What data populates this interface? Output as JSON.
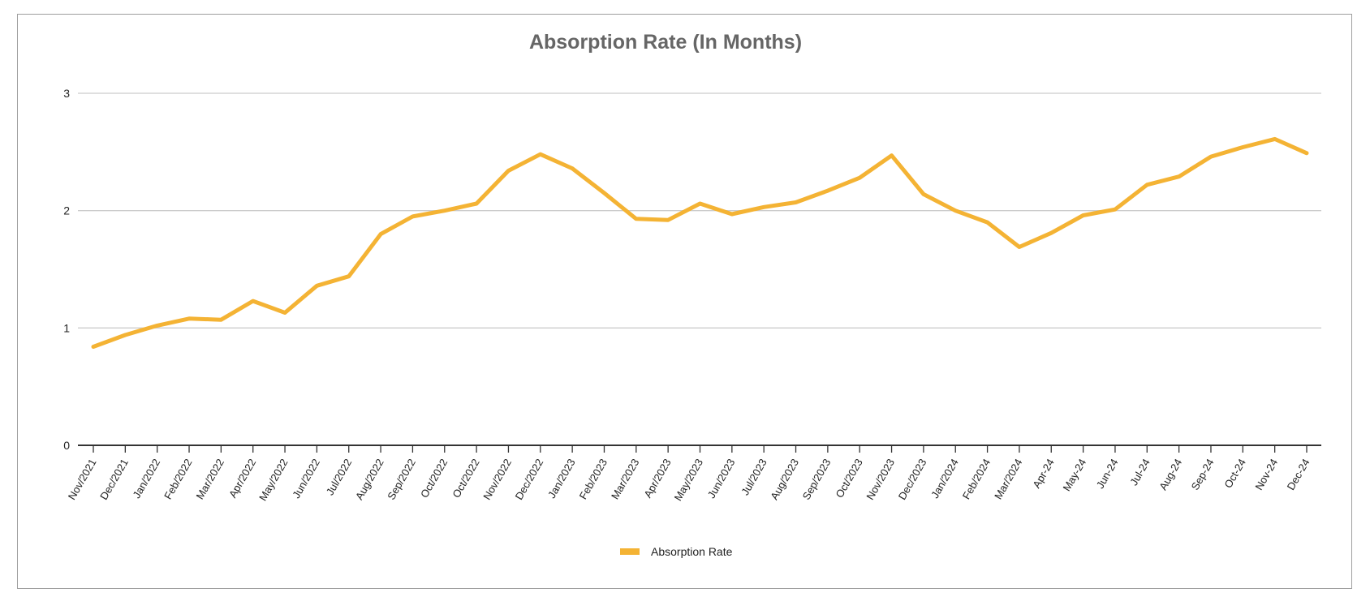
{
  "chart_data": {
    "type": "line",
    "title": "Absorption Rate (In Months)",
    "xlabel": "",
    "ylabel": "",
    "ylim": [
      0,
      3
    ],
    "yticks": [
      0,
      1,
      2,
      3
    ],
    "grid": true,
    "legend_position": "bottom",
    "categories": [
      "Nov/2021",
      "Dec/2021",
      "Jan/2022",
      "Feb/2022",
      "Mar/2022",
      "Apr/2022",
      "May/2022",
      "Jun/2022",
      "Jul/2022",
      "Aug/2022",
      "Sep/2022",
      "Oct/2022",
      "Oct/2022",
      "Nov/2022",
      "Dec/2022",
      "Jan/2023",
      "Feb/2023",
      "Mar/2023",
      "Apr/2023",
      "May/2023",
      "Jun/2023",
      "Jul/2023",
      "Aug/2023",
      "Sep/2023",
      "Oct/2023",
      "Nov/2023",
      "Dec/2023",
      "Jan/2024",
      "Feb/2024",
      "Mar/2024",
      "Apr-24",
      "May-24",
      "Jun-24",
      "Jul-24",
      "Aug-24",
      "Sep-24",
      "Oct-24",
      "Nov-24",
      "Dec-24"
    ],
    "series": [
      {
        "name": "Absorption Rate",
        "color": "#f4b334",
        "values": [
          0.84,
          0.94,
          1.02,
          1.08,
          1.07,
          1.23,
          1.13,
          1.36,
          1.44,
          1.8,
          1.95,
          2.0,
          2.06,
          2.34,
          2.48,
          2.36,
          2.15,
          1.93,
          1.92,
          2.06,
          1.97,
          2.03,
          2.07,
          2.17,
          2.28,
          2.47,
          2.14,
          2.0,
          1.9,
          1.69,
          1.81,
          1.96,
          2.01,
          2.22,
          2.29,
          2.46,
          2.54,
          2.61,
          2.49
        ]
      }
    ]
  }
}
